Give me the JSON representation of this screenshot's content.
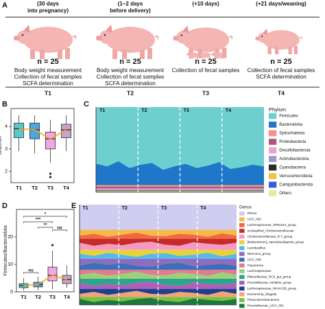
{
  "panel_a": {
    "label": "A",
    "timepoints": [
      {
        "time": [
          "(30 days",
          "into pregnancy)"
        ],
        "n": "n = 25",
        "activities": [
          "Body weight measurement",
          "Collection of fecal samples",
          "SCFA determination"
        ],
        "label": "T1"
      },
      {
        "time": [
          "(1~2 days",
          "before delivery)"
        ],
        "n": "n = 25",
        "activities": [
          "Body weight measurement",
          "Collection of fecal samples",
          "SCFA determination"
        ],
        "label": "T2"
      },
      {
        "time": [
          "(+10 days)"
        ],
        "n": "n = 25",
        "activities": [
          "Collection of fecal samples"
        ],
        "label": "T3"
      },
      {
        "time": [
          "(+21 days/weaning)"
        ],
        "n": "n = 25",
        "activities": [
          "Collection of fecal samples",
          "SCFA determination"
        ],
        "label": "T4"
      }
    ]
  },
  "chart_data": [
    {
      "panel": "B",
      "type": "box",
      "ylabel": "Shannon",
      "categories": [
        "T1",
        "T2",
        "T3",
        "T4"
      ],
      "colors": [
        "#5cc6cc",
        "#4aa6dc",
        "#f2a6e6",
        "#c9a2c6"
      ],
      "trend_color": "#f5a623",
      "boxes": [
        {
          "min": 2.9,
          "q1": 3.5,
          "median": 3.9,
          "q3": 4.15,
          "max": 4.5
        },
        {
          "min": 2.8,
          "q1": 3.45,
          "median": 3.85,
          "q3": 4.15,
          "max": 4.5
        },
        {
          "min": 2.4,
          "q1": 3.0,
          "median": 3.45,
          "q3": 3.75,
          "max": 4.3
        },
        {
          "min": 2.9,
          "q1": 3.5,
          "median": 3.85,
          "q3": 4.1,
          "max": 4.5
        }
      ],
      "outliers": [
        [],
        [],
        [
          1.9,
          1.75
        ],
        []
      ],
      "ylim": [
        1.5,
        4.8
      ],
      "yticks": [
        2,
        3,
        4
      ]
    },
    {
      "panel": "C",
      "type": "stacked_area",
      "groups": [
        "T1",
        "T2",
        "T3",
        "T4"
      ],
      "legend_title": "Phylum",
      "ylim": [
        0,
        1
      ],
      "series": [
        {
          "name": "Firmicutes",
          "color": "#6ecfcf",
          "values": [
            0.665,
            0.695,
            0.635,
            0.715,
            0.675,
            0.655,
            0.735,
            0.695,
            0.665,
            0.715,
            0.685,
            0.645,
            0.725,
            0.705,
            0.675,
            0.695
          ]
        },
        {
          "name": "Bacteroidota",
          "color": "#1f77c9",
          "values": [
            0.25,
            0.22,
            0.28,
            0.2,
            0.24,
            0.26,
            0.18,
            0.22,
            0.25,
            0.2,
            0.23,
            0.27,
            0.19,
            0.21,
            0.24,
            0.22
          ]
        },
        {
          "name": "Spirochaetota",
          "color": "#f2928a",
          "values": [
            0.02,
            0.02,
            0.02,
            0.02,
            0.02,
            0.02,
            0.02,
            0.02,
            0.02,
            0.02,
            0.02,
            0.02,
            0.02,
            0.02,
            0.02,
            0.02
          ]
        },
        {
          "name": "Proteobacteria",
          "color": "#b0567a",
          "values": [
            0.02,
            0.02,
            0.02,
            0.02,
            0.02,
            0.02,
            0.02,
            0.02,
            0.02,
            0.02,
            0.02,
            0.02,
            0.02,
            0.02,
            0.02,
            0.02
          ]
        },
        {
          "name": "Desulfobacterota",
          "color": "#e9a3c9",
          "values": [
            0.01,
            0.01,
            0.01,
            0.01,
            0.01,
            0.01,
            0.01,
            0.01,
            0.01,
            0.01,
            0.01,
            0.01,
            0.01,
            0.01,
            0.01,
            0.01
          ]
        },
        {
          "name": "Actinobacteriota",
          "color": "#9e9ac8",
          "values": [
            0.01,
            0.01,
            0.01,
            0.01,
            0.01,
            0.01,
            0.01,
            0.01,
            0.01,
            0.01,
            0.01,
            0.01,
            0.01,
            0.01,
            0.01,
            0.01
          ]
        },
        {
          "name": "Cyanobacteria",
          "color": "#2b2b2b",
          "values": [
            0.005,
            0.005,
            0.005,
            0.005,
            0.005,
            0.005,
            0.005,
            0.005,
            0.005,
            0.005,
            0.005,
            0.005,
            0.005,
            0.005,
            0.005,
            0.005
          ]
        },
        {
          "name": "Verrucomicrobiota",
          "color": "#e8c547",
          "values": [
            0.005,
            0.005,
            0.005,
            0.005,
            0.005,
            0.005,
            0.005,
            0.005,
            0.005,
            0.005,
            0.005,
            0.005,
            0.005,
            0.005,
            0.005,
            0.005
          ]
        },
        {
          "name": "Campylobacterota",
          "color": "#3a5fcd",
          "values": [
            0.005,
            0.005,
            0.005,
            0.005,
            0.005,
            0.005,
            0.005,
            0.005,
            0.005,
            0.005,
            0.005,
            0.005,
            0.005,
            0.005,
            0.005,
            0.005
          ]
        },
        {
          "name": "Others",
          "color": "#d9f0a3",
          "values": [
            0.01,
            0.01,
            0.01,
            0.01,
            0.01,
            0.01,
            0.01,
            0.01,
            0.01,
            0.01,
            0.01,
            0.01,
            0.01,
            0.01,
            0.01,
            0.01
          ]
        }
      ]
    },
    {
      "panel": "D",
      "type": "box",
      "ylabel": "Firmicutes/Bacteroidota",
      "categories": [
        "T1",
        "T2",
        "T3",
        "T4"
      ],
      "colors": [
        "#5cc6cc",
        "#4aa6dc",
        "#f2a6e6",
        "#c9a2c6"
      ],
      "trend_color": "#f5a623",
      "boxes": [
        {
          "min": 0.5,
          "q1": 1.5,
          "median": 2.3,
          "q3": 3,
          "max": 5
        },
        {
          "min": 0.6,
          "q1": 1.8,
          "median": 2.7,
          "q3": 3.5,
          "max": 5.5
        },
        {
          "min": 1,
          "q1": 4,
          "median": 6,
          "q3": 9,
          "max": 15
        },
        {
          "min": 1.5,
          "q1": 3,
          "median": 4.5,
          "q3": 6,
          "max": 9.5
        }
      ],
      "outliers": [
        [],
        [],
        [
          17
        ],
        []
      ],
      "comparisons": [
        {
          "groups": [
            "T1",
            "T2"
          ],
          "label": "ns"
        },
        {
          "groups": [
            "T3",
            "T4"
          ],
          "label": "ns"
        },
        {
          "groups": [
            "T2",
            "T3"
          ],
          "label": "**"
        },
        {
          "groups": [
            "T1",
            "T3"
          ],
          "label": "***"
        },
        {
          "groups": [
            "T1",
            "T4"
          ],
          "label": "*"
        }
      ],
      "ylim": [
        0,
        30
      ],
      "yticks": [
        0,
        10,
        20
      ]
    },
    {
      "panel": "E",
      "type": "stacked_area",
      "groups": [
        "T1",
        "T2",
        "T3",
        "T4"
      ],
      "legend_title": "Genus",
      "ylim": [
        0,
        1
      ],
      "series": [
        {
          "name": "Others",
          "color": "#cfcdf0",
          "values": [
            0.25,
            0.25,
            0.25,
            0.25,
            0.25,
            0.25,
            0.25,
            0.25,
            0.25,
            0.25,
            0.25,
            0.25
          ]
        },
        {
          "name": "UCG_002",
          "color": "#f7b84e",
          "values": [
            0.06,
            0.04,
            0.07,
            0.05,
            0.03,
            0.06,
            0.065,
            0.04,
            0.05,
            0.07,
            0.035,
            0.06
          ]
        },
        {
          "name": "Lachnospiraceae_XPB1014_group",
          "color": "#f06a3a",
          "values": [
            0.03,
            0.05,
            0.02,
            0.04,
            0.06,
            0.03,
            0.025,
            0.05,
            0.04,
            0.02,
            0.055,
            0.03
          ]
        },
        {
          "name": "unclassified_Christensenellaceae",
          "color": "#c62a2a",
          "values": [
            0.04,
            0.07,
            0.05,
            0.065,
            0.04,
            0.03,
            0.06,
            0.07,
            0.035,
            0.05,
            0.06,
            0.04
          ]
        },
        {
          "name": "Christensenellaceae_R-7_group",
          "color": "#f59ac0",
          "values": [
            0.07,
            0.04,
            0.06,
            0.045,
            0.07,
            0.08,
            0.05,
            0.04,
            0.075,
            0.06,
            0.05,
            0.07
          ]
        },
        {
          "name": "[Eubacterium]_coprostanoligenes_group",
          "color": "#e8d23c",
          "values": [
            0.04,
            0.06,
            0.03,
            0.05,
            0.07,
            0.04,
            0.035,
            0.06,
            0.05,
            0.03,
            0.065,
            0.04
          ]
        },
        {
          "name": "Lactobacillus",
          "color": "#58b8e8",
          "values": [
            0.05,
            0.03,
            0.06,
            0.04,
            0.02,
            0.05,
            0.055,
            0.03,
            0.04,
            0.06,
            0.025,
            0.05
          ]
        },
        {
          "name": "NK4A214_group",
          "color": "#8e6cc0",
          "values": [
            0.07,
            0.04,
            0.06,
            0.045,
            0.07,
            0.08,
            0.05,
            0.04,
            0.075,
            0.06,
            0.05,
            0.07
          ]
        },
        {
          "name": "UCG_005",
          "color": "#3d6fb6",
          "values": [
            0.04,
            0.07,
            0.05,
            0.065,
            0.04,
            0.03,
            0.06,
            0.07,
            0.035,
            0.05,
            0.06,
            0.04
          ]
        },
        {
          "name": "Treponema",
          "color": "#e07b91",
          "values": [
            0.05,
            0.03,
            0.06,
            0.04,
            0.02,
            0.05,
            0.055,
            0.03,
            0.04,
            0.06,
            0.025,
            0.05
          ]
        },
        {
          "name": "Lachnospiraceae",
          "color": "#9bd17a",
          "values": [
            0.04,
            0.06,
            0.03,
            0.05,
            0.07,
            0.04,
            0.035,
            0.06,
            0.05,
            0.03,
            0.065,
            0.04
          ]
        },
        {
          "name": "Rikenellaceae_RC9_gut_group",
          "color": "#2ca58d",
          "values": [
            0.04,
            0.07,
            0.05,
            0.065,
            0.04,
            0.03,
            0.06,
            0.07,
            0.035,
            0.05,
            0.06,
            0.04
          ]
        },
        {
          "name": "Prevotellaceae_NK3B31_group",
          "color": "#b05fb8",
          "values": [
            0.06,
            0.03,
            0.05,
            0.035,
            0.06,
            0.07,
            0.04,
            0.03,
            0.065,
            0.05,
            0.04,
            0.06
          ]
        },
        {
          "name": "Lachnospiraceae_NK4A136_group",
          "color": "#1f3f8f",
          "values": [
            0.05,
            0.03,
            0.06,
            0.04,
            0.02,
            0.05,
            0.055,
            0.03,
            0.04,
            0.06,
            0.025,
            0.05
          ]
        },
        {
          "name": "Escherichia_Shigella",
          "color": "#f2a37a",
          "values": [
            0.03,
            0.05,
            0.02,
            0.04,
            0.06,
            0.03,
            0.025,
            0.05,
            0.04,
            0.02,
            0.055,
            0.03
          ]
        },
        {
          "name": "Phascolarctobacterium",
          "color": "#7ac142",
          "values": [
            0.02,
            0.05,
            0.03,
            0.045,
            0.02,
            0.01,
            0.04,
            0.05,
            0.015,
            0.03,
            0.04,
            0.02
          ]
        },
        {
          "name": "Prevotellaceae_UCG_001",
          "color": "#1b7a3a",
          "values": [
            0.06,
            0.03,
            0.05,
            0.035,
            0.06,
            0.07,
            0.04,
            0.03,
            0.065,
            0.05,
            0.04,
            0.06
          ]
        }
      ]
    }
  ]
}
